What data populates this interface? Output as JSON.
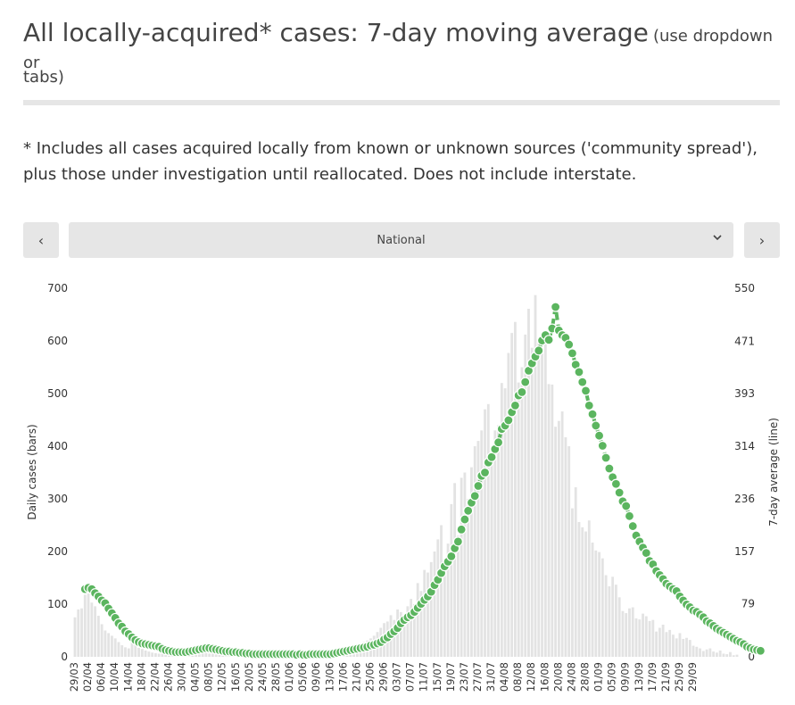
{
  "header": {
    "title": "All locally-acquired* cases: 7-day moving average",
    "subtitle_part1": "(use dropdown or",
    "subtitle_part2": "tabs)"
  },
  "note": "* Includes all cases acquired locally from known or unknown sources ('community spread'), plus those under investigation until reallocated. Does not include interstate.",
  "controls": {
    "prev_label": "‹",
    "next_label": "›",
    "selected": "National",
    "chevron": "chevron-down-icon"
  },
  "colors": {
    "bars": "#e3e3e3",
    "line": "#5bb55f",
    "text": "#333333"
  },
  "chart_data": {
    "type": "bar+line",
    "ylabel_left": "Daily cases (bars)",
    "ylabel_right": "7-day average (line)",
    "left_ticks": [
      "0",
      "100",
      "200",
      "300",
      "400",
      "500",
      "600",
      "700"
    ],
    "right_ticks": [
      "0",
      "79",
      "157",
      "236",
      "314",
      "393",
      "471",
      "550"
    ],
    "ylim_left": [
      0,
      700
    ],
    "x_tick_labels": [
      "29/03",
      "02/04",
      "06/04",
      "10/04",
      "14/04",
      "18/04",
      "22/04",
      "26/04",
      "30/04",
      "04/05",
      "08/05",
      "12/05",
      "16/05",
      "20/05",
      "24/05",
      "28/05",
      "01/06",
      "05/06",
      "09/06",
      "13/06",
      "17/06",
      "21/06",
      "25/06",
      "29/06",
      "03/07",
      "07/07",
      "11/07",
      "15/07",
      "19/07",
      "23/07",
      "27/07",
      "31/07",
      "04/08",
      "08/08",
      "12/08",
      "16/08",
      "20/08",
      "24/08",
      "28/08",
      "01/09",
      "05/09",
      "09/09",
      "13/09",
      "17/09",
      "21/09",
      "25/09",
      "29/09"
    ],
    "x_tick_days": [
      0,
      4,
      8,
      12,
      16,
      20,
      24,
      28,
      32,
      36,
      40,
      44,
      48,
      52,
      56,
      60,
      64,
      68,
      72,
      76,
      80,
      84,
      88,
      92,
      96,
      100,
      104,
      108,
      112,
      116,
      120,
      124,
      128,
      132,
      136,
      140,
      144,
      148,
      152,
      156,
      160,
      164,
      168,
      172,
      176,
      180,
      184
    ],
    "daily_cases": [
      75,
      90,
      92,
      118,
      120,
      103,
      96,
      78,
      62,
      50,
      45,
      40,
      35,
      28,
      22,
      18,
      16,
      28,
      24,
      17,
      15,
      12,
      10,
      8,
      7,
      6,
      8,
      10,
      7,
      8,
      12,
      11,
      9,
      15,
      16,
      10,
      14,
      8,
      12,
      10,
      6,
      8,
      9,
      6,
      5,
      4,
      3,
      5,
      6,
      4,
      3,
      2,
      4,
      5,
      3,
      6,
      4,
      3,
      2,
      4,
      5,
      7,
      4,
      3,
      2,
      5,
      4,
      6,
      1,
      3,
      4,
      2,
      5,
      6,
      8,
      9,
      12,
      15,
      14,
      10,
      16,
      18,
      20,
      17,
      22,
      24,
      28,
      31,
      35,
      40,
      47,
      55,
      64,
      67,
      79,
      70,
      90,
      85,
      80,
      96,
      110,
      100,
      140,
      125,
      165,
      160,
      180,
      200,
      223,
      250,
      170,
      215,
      290,
      330,
      230,
      340,
      350,
      300,
      360,
      400,
      410,
      430,
      470,
      480,
      395,
      430,
      440,
      520,
      510,
      577,
      615,
      636,
      521,
      550,
      612,
      661,
      587,
      687,
      602,
      576,
      596,
      518,
      517,
      437,
      448,
      466,
      417,
      400,
      282,
      322,
      256,
      246,
      238,
      259,
      217,
      202,
      199,
      187,
      155,
      134,
      152,
      137,
      113,
      87,
      83,
      92,
      94,
      73,
      71,
      82,
      77,
      68,
      70,
      48,
      55,
      61,
      47,
      51,
      42,
      35,
      45,
      34,
      36,
      32,
      21,
      19,
      16,
      11,
      14,
      16,
      10,
      8,
      12,
      6,
      5,
      9,
      3,
      4
    ],
    "moving_avg": [
      101,
      103,
      101,
      95,
      90,
      84,
      80,
      72,
      65,
      58,
      50,
      45,
      38,
      34,
      29,
      25,
      22,
      20,
      19,
      18,
      17,
      16,
      15,
      12,
      10,
      9,
      8,
      7,
      7,
      7,
      7,
      8,
      9,
      10,
      11,
      12,
      13,
      13,
      12,
      11,
      10,
      9,
      8,
      8,
      7,
      7,
      6,
      6,
      5,
      5,
      4,
      4,
      4,
      4,
      4,
      4,
      4,
      4,
      4,
      4,
      4,
      4,
      4,
      3,
      4,
      3,
      3,
      4,
      4,
      4,
      4,
      4,
      4,
      4,
      5,
      6,
      7,
      8,
      9,
      10,
      11,
      12,
      13,
      14,
      15,
      17,
      18,
      20,
      22,
      26,
      29,
      34,
      38,
      43,
      50,
      55,
      59,
      62,
      67,
      73,
      79,
      85,
      90,
      97,
      107,
      115,
      125,
      135,
      142,
      150,
      162,
      172,
      190,
      205,
      218,
      230,
      240,
      255,
      270,
      275,
      290,
      298,
      310,
      320,
      340,
      345,
      353,
      365,
      375,
      390,
      395,
      410,
      427,
      438,
      448,
      457,
      472,
      480,
      473,
      490,
      522,
      487,
      480,
      476,
      466,
      453,
      436,
      425,
      410,
      397,
      375,
      362,
      345,
      330,
      315,
      297,
      281,
      268,
      258,
      245,
      232,
      225,
      210,
      195,
      181,
      172,
      163,
      155,
      143,
      138,
      128,
      122,
      116,
      109,
      105,
      101,
      98,
      90,
      84,
      78,
      74,
      69,
      67,
      63,
      59,
      53,
      50,
      46,
      42,
      39,
      36,
      33,
      30,
      27,
      24,
      22,
      19,
      15,
      13,
      11,
      10,
      9
    ]
  }
}
